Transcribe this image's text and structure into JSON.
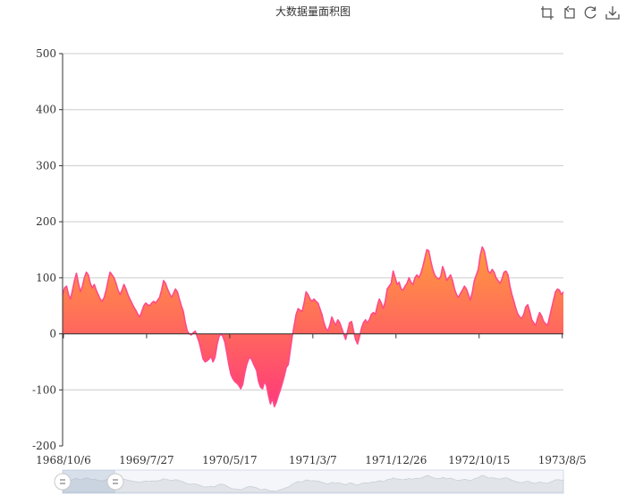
{
  "chart_data": {
    "type": "area",
    "title": "大数据量面积图",
    "xlabel": "",
    "ylabel": "",
    "ylim": [
      -200,
      500
    ],
    "yticks": [
      -200,
      -100,
      0,
      100,
      200,
      300,
      400,
      500
    ],
    "x_tick_labels": [
      "1968/10/6",
      "1969/7/27",
      "1970/5/17",
      "1971/3/7",
      "1971/12/26",
      "1972/10/15",
      "1973/8/5"
    ],
    "grid": true,
    "legend": "none",
    "colors": {
      "area_top": "#ff9a3e",
      "area_bottom": "#ff3a7a",
      "line": "#ff4a8a",
      "grid": "#cccccc"
    },
    "x_start": "1968/10/3",
    "x_end": "1974/1/20",
    "sample_step_days": 7,
    "series": [
      {
        "values": [
          70,
          82,
          85,
          70,
          62,
          78,
          95,
          108,
          90,
          75,
          85,
          100,
          110,
          105,
          90,
          82,
          88,
          78,
          70,
          62,
          58,
          65,
          78,
          95,
          110,
          105,
          100,
          90,
          78,
          70,
          78,
          88,
          80,
          70,
          62,
          55,
          48,
          42,
          35,
          30,
          40,
          50,
          55,
          52,
          50,
          55,
          58,
          55,
          60,
          65,
          78,
          95,
          90,
          80,
          72,
          65,
          72,
          80,
          75,
          62,
          50,
          40,
          20,
          5,
          0,
          -2,
          2,
          5,
          -5,
          -15,
          -30,
          -45,
          -50,
          -48,
          -45,
          -40,
          -50,
          -42,
          -20,
          -5,
          0,
          -5,
          -15,
          -35,
          -55,
          -72,
          -80,
          -85,
          -88,
          -92,
          -98,
          -90,
          -70,
          -55,
          -45,
          -42,
          -50,
          -58,
          -65,
          -85,
          -95,
          -98,
          -85,
          -92,
          -110,
          -125,
          -115,
          -130,
          -122,
          -110,
          -100,
          -88,
          -75,
          -60,
          -55,
          -30,
          -5,
          15,
          35,
          45,
          42,
          40,
          55,
          75,
          70,
          62,
          58,
          62,
          58,
          55,
          45,
          35,
          20,
          10,
          5,
          15,
          30,
          22,
          15,
          25,
          20,
          10,
          0,
          -10,
          5,
          20,
          22,
          5,
          -10,
          -18,
          -5,
          10,
          20,
          25,
          20,
          25,
          35,
          38,
          35,
          50,
          62,
          55,
          45,
          58,
          80,
          85,
          90,
          112,
          100,
          88,
          92,
          80,
          78,
          85,
          90,
          100,
          92,
          88,
          100,
          105,
          100,
          108,
          120,
          135,
          150,
          148,
          130,
          115,
          105,
          100,
          98,
          102,
          120,
          110,
          95,
          100,
          105,
          95,
          80,
          70,
          65,
          72,
          78,
          85,
          80,
          70,
          60,
          75,
          95,
          105,
          115,
          140,
          155,
          148,
          130,
          112,
          108,
          115,
          110,
          100,
          95,
          90,
          98,
          110,
          112,
          105,
          85,
          70,
          58,
          45,
          35,
          30,
          28,
          35,
          48,
          52,
          40,
          25,
          20,
          15,
          28,
          38,
          32,
          22,
          18,
          15,
          30,
          45,
          60,
          75,
          80,
          78,
          70,
          75
        ]
      }
    ]
  },
  "toolbox": {
    "zoom": "zoom-icon",
    "zoom_reset": "zoom-reset-icon",
    "restore": "restore-icon",
    "save": "save-image-icon"
  },
  "datazoom": {
    "start_percent": 0,
    "end_percent": 10
  }
}
